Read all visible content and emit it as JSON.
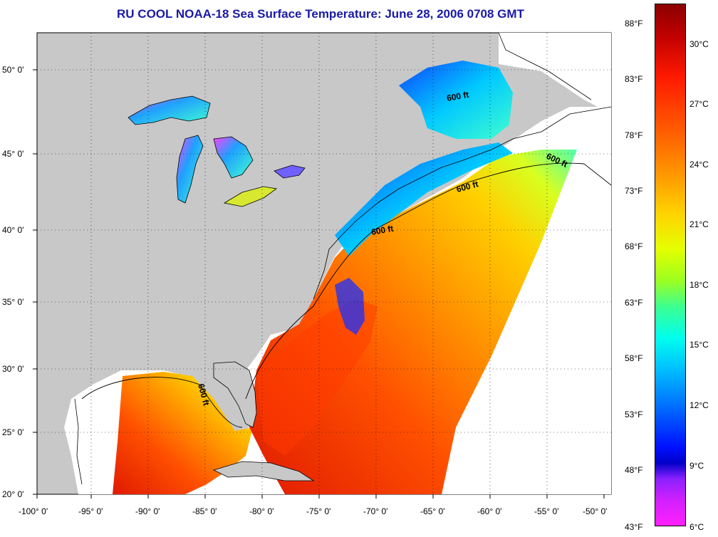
{
  "title": "RU COOL  NOAA-18  Sea Surface Temperature:  June 28, 2006 0708 GMT",
  "map": {
    "lon_ticks": [
      "-100° 0'",
      "-95° 0'",
      "-90° 0'",
      "-85° 0'",
      "-80° 0'",
      "-75° 0'",
      "-70° 0'",
      "-65° 0'",
      "-60° 0'",
      "-55° 0'",
      "-50° 0'"
    ],
    "lat_ticks": [
      "50° 0'",
      "45° 0'",
      "40° 0'",
      "35° 0'",
      "30° 0'",
      "25° 0'",
      "20° 0'"
    ],
    "isobath_labels": [
      "600 ft",
      "600 ft",
      "600 ft",
      "600 ft",
      "600 ft"
    ],
    "land_color": "#c8c8c8",
    "ocean_nodata_color": "#ffffff"
  },
  "colorbar": {
    "fahrenheit": [
      "88°F",
      "83°F",
      "78°F",
      "73°F",
      "68°F",
      "63°F",
      "58°F",
      "53°F",
      "48°F",
      "43°F"
    ],
    "celsius": [
      "30°C",
      "27°C",
      "24°C",
      "21°C",
      "18°C",
      "15°C",
      "12°C",
      "9°C",
      "6°C"
    ]
  }
}
